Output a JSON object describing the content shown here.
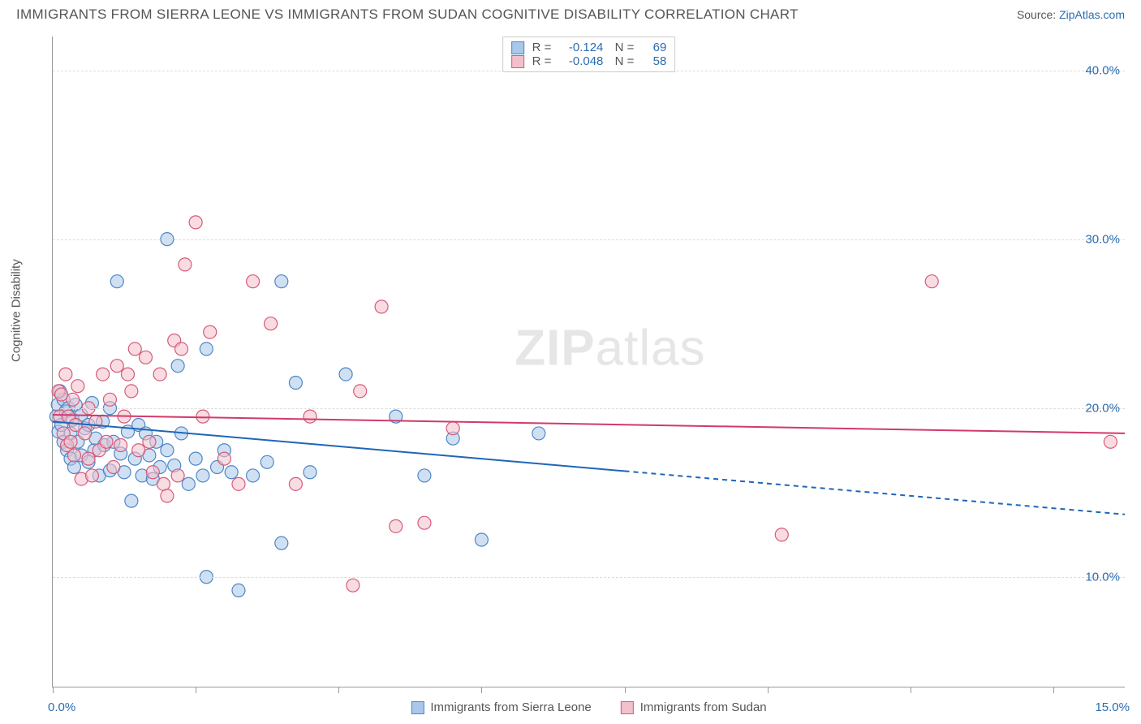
{
  "title": "IMMIGRANTS FROM SIERRA LEONE VS IMMIGRANTS FROM SUDAN COGNITIVE DISABILITY CORRELATION CHART",
  "source_prefix": "Source: ",
  "source_link": "ZipAtlas.com",
  "ylabel": "Cognitive Disability",
  "watermark_bold": "ZIP",
  "watermark_thin": "atlas",
  "chart": {
    "type": "scatter",
    "xlim": [
      0,
      15
    ],
    "ylim": [
      3.5,
      42
    ],
    "x_ticks": [
      0,
      2,
      4,
      6,
      8,
      10,
      12,
      14
    ],
    "x_label_min": "0.0%",
    "x_label_max": "15.0%",
    "y_gridlines": [
      10,
      20,
      30,
      40
    ],
    "y_labels": [
      "10.0%",
      "20.0%",
      "30.0%",
      "40.0%"
    ],
    "background": "#ffffff",
    "grid_color": "#dddddd",
    "axis_color": "#999999",
    "marker_radius": 8,
    "marker_stroke_width": 1.2,
    "series": [
      {
        "name": "Immigrants from Sierra Leone",
        "fill": "#a9c7ea",
        "stroke": "#4e86c6",
        "fill_opacity": 0.55,
        "R": "-0.124",
        "N": "69",
        "trend": {
          "y_at_x0": 19.2,
          "y_at_xmax": 13.7,
          "solid_until_x": 8.0,
          "color": "#1e66b8",
          "width": 2
        },
        "points": [
          [
            0.05,
            19.5
          ],
          [
            0.07,
            20.2
          ],
          [
            0.08,
            18.6
          ],
          [
            0.1,
            21.0
          ],
          [
            0.12,
            19.0
          ],
          [
            0.15,
            20.5
          ],
          [
            0.15,
            18.0
          ],
          [
            0.18,
            19.8
          ],
          [
            0.2,
            17.5
          ],
          [
            0.22,
            20.0
          ],
          [
            0.25,
            18.5
          ],
          [
            0.25,
            17.0
          ],
          [
            0.28,
            19.3
          ],
          [
            0.3,
            16.5
          ],
          [
            0.32,
            20.2
          ],
          [
            0.35,
            18.0
          ],
          [
            0.4,
            17.2
          ],
          [
            0.4,
            19.6
          ],
          [
            0.45,
            18.8
          ],
          [
            0.5,
            16.8
          ],
          [
            0.5,
            19.0
          ],
          [
            0.55,
            20.3
          ],
          [
            0.58,
            17.5
          ],
          [
            0.6,
            18.2
          ],
          [
            0.65,
            16.0
          ],
          [
            0.7,
            19.2
          ],
          [
            0.72,
            17.8
          ],
          [
            0.8,
            16.3
          ],
          [
            0.8,
            20.0
          ],
          [
            0.85,
            18.0
          ],
          [
            0.9,
            27.5
          ],
          [
            0.95,
            17.3
          ],
          [
            1.0,
            16.2
          ],
          [
            1.05,
            18.6
          ],
          [
            1.1,
            14.5
          ],
          [
            1.15,
            17.0
          ],
          [
            1.2,
            19.0
          ],
          [
            1.25,
            16.0
          ],
          [
            1.3,
            18.5
          ],
          [
            1.35,
            17.2
          ],
          [
            1.4,
            15.8
          ],
          [
            1.45,
            18.0
          ],
          [
            1.5,
            16.5
          ],
          [
            1.6,
            30.0
          ],
          [
            1.6,
            17.5
          ],
          [
            1.7,
            16.6
          ],
          [
            1.75,
            22.5
          ],
          [
            1.8,
            18.5
          ],
          [
            1.9,
            15.5
          ],
          [
            2.0,
            17.0
          ],
          [
            2.1,
            16.0
          ],
          [
            2.15,
            23.5
          ],
          [
            2.15,
            10.0
          ],
          [
            2.3,
            16.5
          ],
          [
            2.4,
            17.5
          ],
          [
            2.5,
            16.2
          ],
          [
            2.6,
            9.2
          ],
          [
            2.8,
            16.0
          ],
          [
            3.0,
            16.8
          ],
          [
            3.2,
            27.5
          ],
          [
            3.2,
            12.0
          ],
          [
            3.4,
            21.5
          ],
          [
            3.6,
            16.2
          ],
          [
            4.1,
            22.0
          ],
          [
            4.8,
            19.5
          ],
          [
            5.2,
            16.0
          ],
          [
            5.6,
            18.2
          ],
          [
            6.0,
            12.2
          ],
          [
            6.8,
            18.5
          ]
        ]
      },
      {
        "name": "Immigrants from Sudan",
        "fill": "#f2c0cb",
        "stroke": "#d75a7b",
        "fill_opacity": 0.55,
        "R": "-0.048",
        "N": "58",
        "trend": {
          "y_at_x0": 19.6,
          "y_at_xmax": 18.5,
          "solid_until_x": 15.0,
          "color": "#d13a6b",
          "width": 2
        },
        "points": [
          [
            0.08,
            21.0
          ],
          [
            0.1,
            19.5
          ],
          [
            0.12,
            20.8
          ],
          [
            0.15,
            18.5
          ],
          [
            0.18,
            22.0
          ],
          [
            0.2,
            17.8
          ],
          [
            0.22,
            19.5
          ],
          [
            0.25,
            18.0
          ],
          [
            0.28,
            20.5
          ],
          [
            0.3,
            17.2
          ],
          [
            0.32,
            19.0
          ],
          [
            0.35,
            21.3
          ],
          [
            0.4,
            15.8
          ],
          [
            0.45,
            18.5
          ],
          [
            0.5,
            17.0
          ],
          [
            0.5,
            20.0
          ],
          [
            0.55,
            16.0
          ],
          [
            0.6,
            19.2
          ],
          [
            0.65,
            17.5
          ],
          [
            0.7,
            22.0
          ],
          [
            0.75,
            18.0
          ],
          [
            0.8,
            20.5
          ],
          [
            0.85,
            16.5
          ],
          [
            0.9,
            22.5
          ],
          [
            0.95,
            17.8
          ],
          [
            1.0,
            19.5
          ],
          [
            1.05,
            22.0
          ],
          [
            1.1,
            21.0
          ],
          [
            1.15,
            23.5
          ],
          [
            1.2,
            17.5
          ],
          [
            1.3,
            23.0
          ],
          [
            1.35,
            18.0
          ],
          [
            1.4,
            16.2
          ],
          [
            1.5,
            22.0
          ],
          [
            1.55,
            15.5
          ],
          [
            1.6,
            14.8
          ],
          [
            1.7,
            24.0
          ],
          [
            1.75,
            16.0
          ],
          [
            1.8,
            23.5
          ],
          [
            1.85,
            28.5
          ],
          [
            2.0,
            31.0
          ],
          [
            2.1,
            19.5
          ],
          [
            2.2,
            24.5
          ],
          [
            2.4,
            17.0
          ],
          [
            2.6,
            15.5
          ],
          [
            2.8,
            27.5
          ],
          [
            3.05,
            25.0
          ],
          [
            3.4,
            15.5
          ],
          [
            3.6,
            19.5
          ],
          [
            4.2,
            9.5
          ],
          [
            4.3,
            21.0
          ],
          [
            4.6,
            26.0
          ],
          [
            4.8,
            13.0
          ],
          [
            5.2,
            13.2
          ],
          [
            5.6,
            18.8
          ],
          [
            10.2,
            12.5
          ],
          [
            12.3,
            27.5
          ],
          [
            14.8,
            18.0
          ]
        ]
      }
    ]
  }
}
